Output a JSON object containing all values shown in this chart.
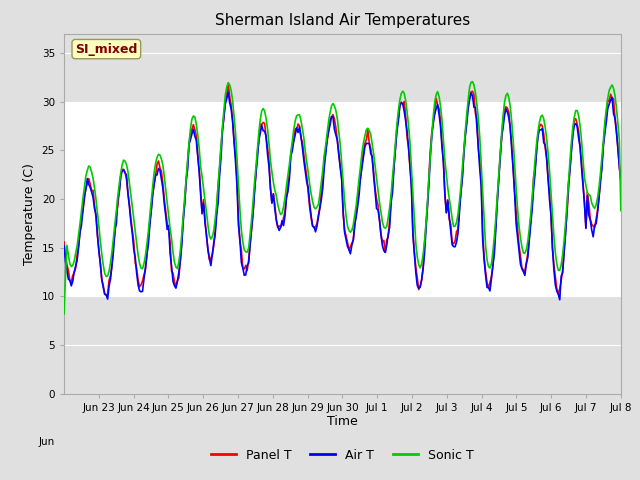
{
  "title": "Sherman Island Air Temperatures",
  "xlabel": "Time",
  "ylabel": "Temperature (C)",
  "ylim": [
    0,
    37
  ],
  "yticks": [
    0,
    5,
    10,
    15,
    20,
    25,
    30,
    35
  ],
  "background_color": "#e0e0e0",
  "plot_bg_color": "#e0e0e0",
  "white_band": [
    10,
    30
  ],
  "label_box_text": "SI_mixed",
  "label_box_color": "#ffffc0",
  "label_box_text_color": "#800000",
  "legend_entries": [
    "Panel T",
    "Air T",
    "Sonic T"
  ],
  "line_colors": [
    "red",
    "blue",
    "#00cc00"
  ],
  "line_width": 1.2,
  "xtick_labels": [
    "Jun 23",
    "Jun 24",
    "Jun 25",
    "Jun 26",
    "Jun 27",
    "Jun 28",
    "Jun 29",
    "Jun 30",
    "Jul 1",
    "Jul 2",
    "Jul 3",
    "Jul 4",
    "Jul 5",
    "Jul 6",
    "Jul 7",
    "Jul 8"
  ],
  "jun_label": "Jun"
}
